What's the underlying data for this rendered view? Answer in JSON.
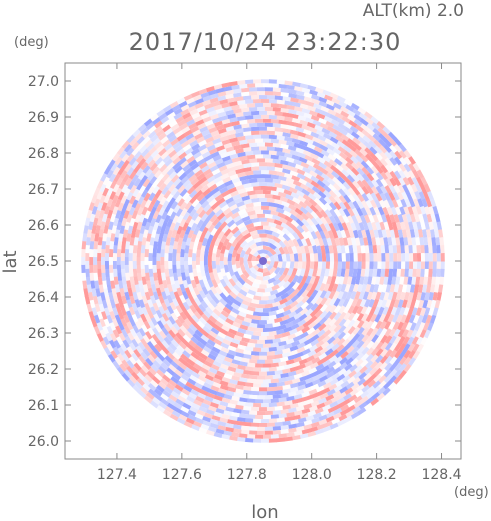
{
  "header": {
    "altitude_label": "ALT(km) 2.0",
    "timestamp": "2017/10/24 23:22:30"
  },
  "colors": {
    "positive": "#ff9a9a",
    "negative": "#9aa6ff",
    "axis": "#8a8a8a",
    "text": "#666666"
  },
  "chart_data": {
    "type": "heatmap",
    "title": "2017/10/24 23:22:30",
    "subtitle": "ALT(km) 2.0",
    "xlabel": "lon",
    "ylabel": "lat",
    "xunit": "(deg)",
    "yunit": "(deg)",
    "xlim": [
      127.24,
      128.46
    ],
    "ylim": [
      25.95,
      27.05
    ],
    "xticks": [
      127.4,
      127.6,
      127.8,
      128.0,
      128.2,
      128.4
    ],
    "xtick_labels": [
      "127.4",
      "127.6",
      "127.8",
      "128.0",
      "128.2",
      "128.4"
    ],
    "yticks": [
      26.0,
      26.1,
      26.2,
      26.3,
      26.4,
      26.5,
      26.6,
      26.7,
      26.8,
      26.9,
      27.0
    ],
    "ytick_labels": [
      "26.0",
      "26.1",
      "26.2",
      "26.3",
      "26.4",
      "26.5",
      "26.6",
      "26.7",
      "26.8",
      "26.9",
      "27.0"
    ],
    "center": {
      "lon": 127.85,
      "lat": 26.5
    },
    "radius_deg_lat": 0.505,
    "colormap": "diverging red-white-blue"
  }
}
